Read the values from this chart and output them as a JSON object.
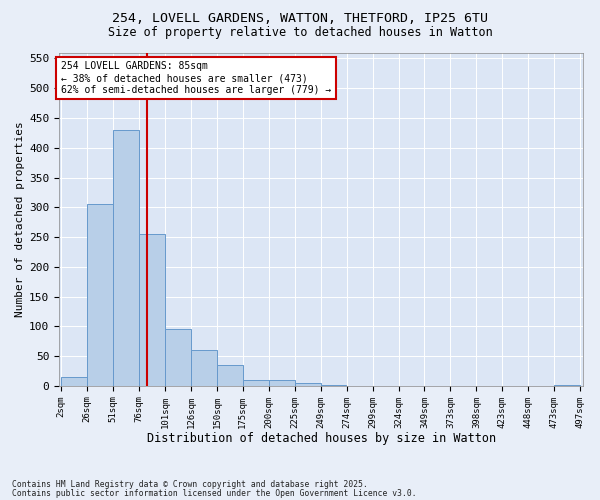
{
  "title_line1": "254, LOVELL GARDENS, WATTON, THETFORD, IP25 6TU",
  "title_line2": "Size of property relative to detached houses in Watton",
  "xlabel": "Distribution of detached houses by size in Watton",
  "ylabel": "Number of detached properties",
  "footnote1": "Contains HM Land Registry data © Crown copyright and database right 2025.",
  "footnote2": "Contains public sector information licensed under the Open Government Licence v3.0.",
  "annotation_line1": "254 LOVELL GARDENS: 85sqm",
  "annotation_line2": "← 38% of detached houses are smaller (473)",
  "annotation_line3": "62% of semi-detached houses are larger (779) →",
  "bar_heights": [
    15,
    305,
    430,
    255,
    95,
    60,
    35,
    10,
    10,
    5,
    1,
    0,
    0,
    0,
    0,
    0,
    0,
    0,
    0,
    1
  ],
  "bar_color": "#b8cfe8",
  "bar_edge_color": "#6699cc",
  "vline_color": "#cc0000",
  "vline_x": 85,
  "annotation_box_color": "#cc0000",
  "ylim": [
    0,
    560
  ],
  "yticks": [
    0,
    50,
    100,
    150,
    200,
    250,
    300,
    350,
    400,
    450,
    500,
    550
  ],
  "bg_color": "#e8eef8",
  "plot_bg_color": "#dce6f5",
  "grid_color": "#ffffff",
  "tick_labels": [
    "2sqm",
    "26sqm",
    "51sqm",
    "76sqm",
    "101sqm",
    "126sqm",
    "150sqm",
    "175sqm",
    "200sqm",
    "225sqm",
    "249sqm",
    "274sqm",
    "299sqm",
    "324sqm",
    "349sqm",
    "373sqm",
    "398sqm",
    "423sqm",
    "448sqm",
    "473sqm",
    "497sqm"
  ],
  "num_bins": 20,
  "bin_width": 25
}
